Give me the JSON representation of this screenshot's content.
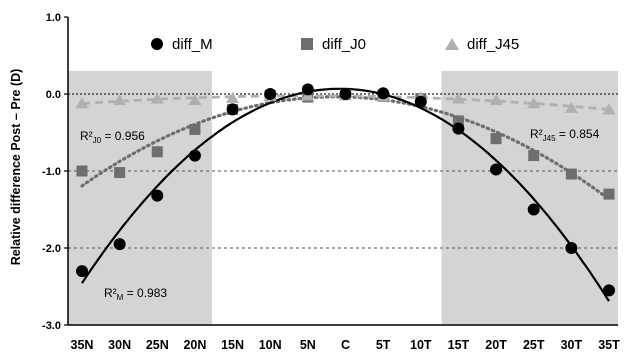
{
  "chart_data": {
    "type": "scatter",
    "ylabel": "Relative difference Post – Pre (D)",
    "categories": [
      "35N",
      "30N",
      "25N",
      "20N",
      "15N",
      "10N",
      "5N",
      "C",
      "5T",
      "10T",
      "15T",
      "20T",
      "25T",
      "30T",
      "35T"
    ],
    "ylim": [
      -3.0,
      1.0
    ],
    "yticks": [
      "1.0",
      "0.0",
      "-1.0",
      "-2.0",
      "-3.0"
    ],
    "ytick_values": [
      1.0,
      0.0,
      -1.0,
      -2.0,
      -3.0
    ],
    "grid": "dashed horizontal at -1.0 and -2.0",
    "shaded_categories": [
      [
        "35N",
        "20N"
      ],
      [
        "15T",
        "35T"
      ]
    ],
    "shade_color": "#d4d4d4",
    "legend_position": "top",
    "series": [
      {
        "name": "diff_M",
        "marker": "circle",
        "color": "#000000",
        "fit_style": "solid",
        "values": [
          -2.3,
          -1.95,
          -1.32,
          -0.8,
          -0.2,
          0.0,
          0.06,
          0.0,
          0.01,
          -0.1,
          -0.45,
          -0.98,
          -1.5,
          -2.0,
          -2.55
        ]
      },
      {
        "name": "diff_J0",
        "marker": "square",
        "color": "#6e6e6e",
        "fit_style": "dotted",
        "values": [
          -1.0,
          -1.02,
          -0.75,
          -0.46,
          -0.2,
          -0.02,
          -0.04,
          -0.01,
          -0.03,
          -0.06,
          -0.35,
          -0.58,
          -0.8,
          -1.04,
          -1.3
        ]
      },
      {
        "name": "diff_J45",
        "marker": "triangle",
        "color": "#b0b0b0",
        "fit_style": "dashed",
        "values": [
          -0.12,
          -0.08,
          -0.06,
          -0.08,
          -0.05,
          -0.03,
          -0.02,
          -0.02,
          -0.03,
          -0.04,
          -0.06,
          -0.08,
          -0.12,
          -0.18,
          -0.2
        ]
      }
    ],
    "annotations": [
      {
        "id": "r2_j0",
        "label": "R²",
        "sub": "J0",
        "value": "= 0.956"
      },
      {
        "id": "r2_j45",
        "label": "R²",
        "sub": "J45",
        "value": "= 0.854"
      },
      {
        "id": "r2_m",
        "label": "R²",
        "sub": "M",
        "value": "= 0.983"
      }
    ]
  }
}
